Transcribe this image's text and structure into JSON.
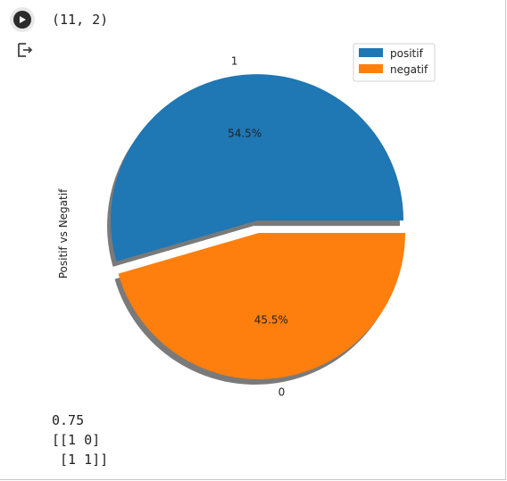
{
  "cell": {
    "shape_output": "(11, 2)",
    "run_icon": "play-icon",
    "output_icon": "output-arrow-icon"
  },
  "chart_data": {
    "type": "pie",
    "ylabel": "Positif vs Negatif",
    "slices": [
      {
        "label": "1",
        "value": 54.5,
        "pct_label": "54.5%",
        "legend": "positif",
        "color": "#1f77b4",
        "explode": 0.1
      },
      {
        "label": "0",
        "value": 45.5,
        "pct_label": "45.5%",
        "legend": "negatif",
        "color": "#ff7f0e",
        "explode": 0
      }
    ],
    "legend_placement": "upper-right",
    "shadow": true
  },
  "text_output": {
    "lines": [
      "0.75",
      "[[1 0]",
      " [1 1]]"
    ]
  }
}
